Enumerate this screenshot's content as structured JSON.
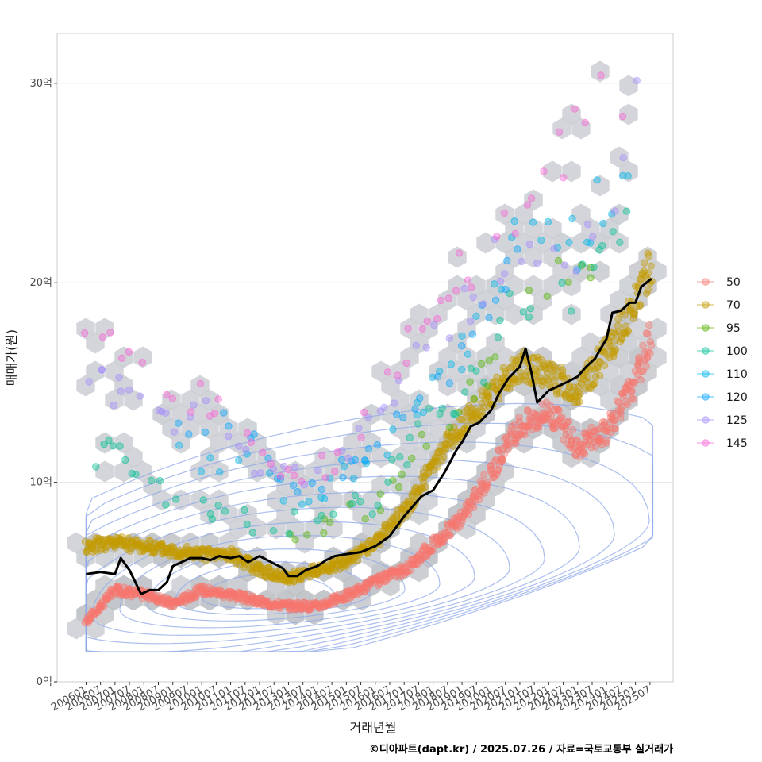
{
  "chart_data": {
    "type": "scatter",
    "xlabel": "거래년월",
    "ylabel": "매매가(원)",
    "caption": "©디아파트(dapt.kr) / 2025.07.26 / 자료=국토교통부 실거래가",
    "ylim": [
      0,
      32.5
    ],
    "y_ticks": [
      {
        "value": 0,
        "label": "0억"
      },
      {
        "value": 10,
        "label": "10억"
      },
      {
        "value": 20,
        "label": "20억"
      },
      {
        "value": 30,
        "label": "30억"
      }
    ],
    "x_ticks": [
      "200601",
      "200607",
      "200701",
      "200707",
      "200801",
      "200807",
      "200901",
      "200907",
      "201001",
      "201007",
      "201101",
      "201107",
      "201201",
      "201207",
      "201301",
      "201307",
      "201401",
      "201407",
      "201501",
      "201507",
      "201601",
      "201607",
      "201701",
      "201707",
      "201801",
      "201807",
      "201901",
      "201907",
      "202001",
      "202007",
      "202101",
      "202107",
      "202201",
      "202207",
      "202301",
      "202307",
      "202401",
      "202407",
      "202501",
      "202507"
    ],
    "grid": "horizontal",
    "legend_position": "right",
    "series": [
      {
        "name": "50",
        "color": "#F8766D",
        "anchors": [
          [
            2006.0,
            3.0
          ],
          [
            2007.0,
            4.6
          ],
          [
            2008.0,
            4.4
          ],
          [
            2009.0,
            3.9
          ],
          [
            2010.0,
            4.6
          ],
          [
            2011.0,
            4.4
          ],
          [
            2012.0,
            4.0
          ],
          [
            2013.0,
            3.8
          ],
          [
            2014.0,
            3.8
          ],
          [
            2015.0,
            4.3
          ],
          [
            2016.0,
            5.0
          ],
          [
            2017.0,
            5.6
          ],
          [
            2018.0,
            6.9
          ],
          [
            2019.0,
            8.2
          ],
          [
            2020.0,
            10.5
          ],
          [
            2021.0,
            12.8
          ],
          [
            2022.0,
            13.6
          ],
          [
            2023.0,
            11.8
          ],
          [
            2024.0,
            12.6
          ],
          [
            2025.0,
            15.0
          ],
          [
            2025.55,
            17.5
          ]
        ]
      },
      {
        "name": "70",
        "color": "#C49A00",
        "anchors": [
          [
            2006.0,
            6.8
          ],
          [
            2007.0,
            7.0
          ],
          [
            2009.0,
            6.6
          ],
          [
            2010.0,
            6.4
          ],
          [
            2011.0,
            6.4
          ],
          [
            2012.0,
            5.6
          ],
          [
            2013.0,
            5.2
          ],
          [
            2014.0,
            5.6
          ],
          [
            2015.0,
            6.0
          ],
          [
            2016.0,
            7.0
          ],
          [
            2017.0,
            8.5
          ],
          [
            2018.0,
            10.8
          ],
          [
            2019.0,
            12.8
          ],
          [
            2020.0,
            14.5
          ],
          [
            2021.0,
            15.8
          ],
          [
            2022.0,
            15.4
          ],
          [
            2023.0,
            14.5
          ],
          [
            2024.0,
            16.5
          ],
          [
            2025.0,
            19.0
          ],
          [
            2025.55,
            21.0
          ]
        ]
      },
      {
        "name": "95",
        "color": "#53B400",
        "anchors": [
          [
            2013.0,
            7.5
          ],
          [
            2016.0,
            8.8
          ],
          [
            2020.0,
            16.0
          ],
          [
            2022.0,
            20.0
          ],
          [
            2024.0,
            20.3
          ]
        ]
      },
      {
        "name": "100",
        "color": "#00C094",
        "anchors": [
          [
            2006.3,
            11.5
          ],
          [
            2006.5,
            12.8
          ],
          [
            2008.5,
            9.5
          ],
          [
            2009.0,
            8.5
          ],
          [
            2010.0,
            9.0
          ],
          [
            2011.0,
            8.5
          ],
          [
            2012.0,
            7.8
          ],
          [
            2013.0,
            8.0
          ],
          [
            2014.0,
            8.5
          ],
          [
            2015.0,
            8.8
          ],
          [
            2016.0,
            9.0
          ],
          [
            2017.0,
            11.5
          ],
          [
            2018.0,
            13.0
          ],
          [
            2019.0,
            14.5
          ],
          [
            2020.0,
            16.5
          ],
          [
            2021.0,
            19.5
          ],
          [
            2023.0,
            19.0
          ],
          [
            2024.0,
            21.5
          ],
          [
            2025.0,
            23.5
          ],
          [
            2025.5,
            28.0
          ]
        ]
      },
      {
        "name": "110",
        "color": "#00B6EB",
        "anchors": [
          [
            2009.2,
            11.5
          ],
          [
            2010.0,
            10.5
          ],
          [
            2011.5,
            11.5
          ],
          [
            2013.0,
            9.5
          ],
          [
            2014.0,
            9.3
          ],
          [
            2015.0,
            10.5
          ],
          [
            2016.0,
            11.5
          ],
          [
            2017.0,
            13.0
          ],
          [
            2018.0,
            14.5
          ],
          [
            2019.0,
            16.5
          ],
          [
            2020.0,
            19.5
          ],
          [
            2021.0,
            22.5
          ],
          [
            2023.0,
            21.8
          ],
          [
            2025.0,
            26.8
          ]
        ]
      },
      {
        "name": "120",
        "color": "#06A4FF",
        "anchors": [
          [
            2009.0,
            12.5
          ],
          [
            2010.0,
            12.8
          ],
          [
            2011.0,
            13.0
          ],
          [
            2013.5,
            9.5
          ],
          [
            2015.0,
            11.0
          ],
          [
            2016.5,
            12.5
          ],
          [
            2017.5,
            14.0
          ],
          [
            2019.0,
            16.0
          ],
          [
            2020.0,
            19.0
          ],
          [
            2021.0,
            23.5
          ]
        ]
      },
      {
        "name": "125",
        "color": "#A58AFF",
        "anchors": [
          [
            2006.0,
            15.5
          ],
          [
            2009.0,
            12.5
          ],
          [
            2010.5,
            13.5
          ],
          [
            2012.0,
            10.5
          ],
          [
            2013.5,
            10.5
          ],
          [
            2014.5,
            11.0
          ],
          [
            2016.5,
            14.5
          ],
          [
            2018.0,
            17.0
          ],
          [
            2019.5,
            20.0
          ],
          [
            2020.5,
            21.5
          ],
          [
            2023.0,
            20.5
          ],
          [
            2024.5,
            26.0
          ],
          [
            2025.2,
            29.5
          ]
        ]
      },
      {
        "name": "145",
        "color": "#FB61D7",
        "anchors": [
          [
            2006.0,
            17.0
          ],
          [
            2006.5,
            17.2
          ],
          [
            2009.2,
            15.0
          ],
          [
            2010.5,
            13.5
          ],
          [
            2011.5,
            12.5
          ],
          [
            2012.5,
            11.0
          ],
          [
            2013.5,
            10.5
          ],
          [
            2014.5,
            11.0
          ],
          [
            2015.5,
            13.0
          ],
          [
            2016.5,
            15.5
          ],
          [
            2018.0,
            18.0
          ],
          [
            2019.0,
            20.5
          ],
          [
            2020.0,
            22.0
          ],
          [
            2024.0,
            29.5
          ],
          [
            2025.3,
            31.5
          ]
        ]
      }
    ],
    "median_line": [
      [
        2006.0,
        5.4
      ],
      [
        2006.5,
        5.5
      ],
      [
        2007.0,
        5.4
      ],
      [
        2007.2,
        6.2
      ],
      [
        2007.5,
        5.6
      ],
      [
        2007.9,
        4.4
      ],
      [
        2008.2,
        4.6
      ],
      [
        2008.5,
        4.6
      ],
      [
        2008.8,
        5.0
      ],
      [
        2009.0,
        5.8
      ],
      [
        2009.3,
        6.0
      ],
      [
        2009.6,
        6.2
      ],
      [
        2010.0,
        6.2
      ],
      [
        2010.3,
        6.1
      ],
      [
        2010.6,
        6.3
      ],
      [
        2011.0,
        6.2
      ],
      [
        2011.3,
        6.3
      ],
      [
        2011.6,
        6.0
      ],
      [
        2012.0,
        6.3
      ],
      [
        2012.4,
        6.0
      ],
      [
        2012.8,
        5.7
      ],
      [
        2013.0,
        5.3
      ],
      [
        2013.3,
        5.3
      ],
      [
        2013.6,
        5.6
      ],
      [
        2014.0,
        5.8
      ],
      [
        2014.3,
        6.1
      ],
      [
        2014.6,
        6.3
      ],
      [
        2015.0,
        6.4
      ],
      [
        2015.5,
        6.5
      ],
      [
        2016.0,
        6.8
      ],
      [
        2016.5,
        7.3
      ],
      [
        2017.0,
        8.3
      ],
      [
        2017.3,
        8.8
      ],
      [
        2017.6,
        9.3
      ],
      [
        2018.0,
        9.6
      ],
      [
        2018.4,
        10.5
      ],
      [
        2018.8,
        11.6
      ],
      [
        2019.0,
        12.0
      ],
      [
        2019.3,
        12.8
      ],
      [
        2019.6,
        13.0
      ],
      [
        2020.0,
        13.6
      ],
      [
        2020.3,
        14.5
      ],
      [
        2020.6,
        15.2
      ],
      [
        2021.0,
        15.8
      ],
      [
        2021.2,
        16.7
      ],
      [
        2021.4,
        15.5
      ],
      [
        2021.6,
        14.0
      ],
      [
        2021.8,
        14.3
      ],
      [
        2022.0,
        14.6
      ],
      [
        2022.3,
        14.8
      ],
      [
        2022.6,
        15.0
      ],
      [
        2023.0,
        15.3
      ],
      [
        2023.3,
        15.8
      ],
      [
        2023.6,
        16.2
      ],
      [
        2024.0,
        17.2
      ],
      [
        2024.2,
        18.5
      ],
      [
        2024.5,
        18.6
      ],
      [
        2024.8,
        19.0
      ],
      [
        2025.0,
        19.0
      ],
      [
        2025.2,
        19.8
      ],
      [
        2025.55,
        20.2
      ]
    ],
    "density_contours": "blue",
    "hexbin": "grey"
  }
}
